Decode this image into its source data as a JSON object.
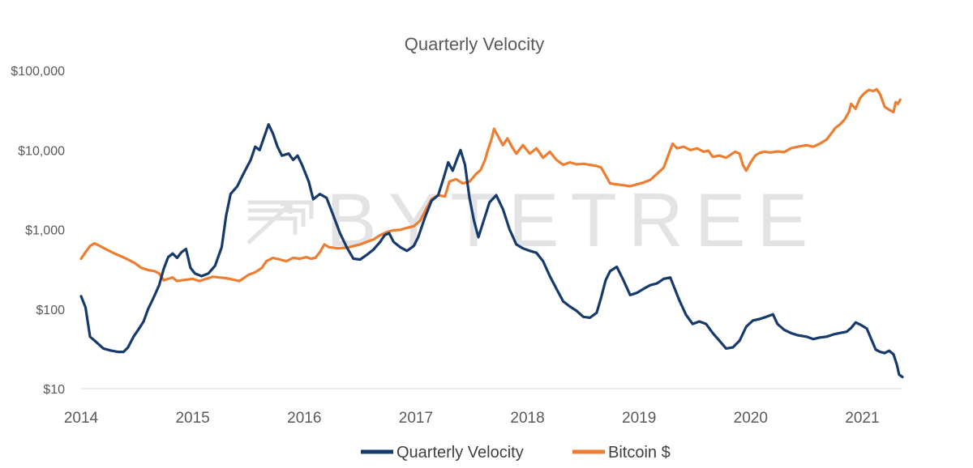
{
  "chart_data": {
    "type": "line",
    "title": "Quarterly Velocity",
    "xlabel": "",
    "ylabel": "",
    "y_scale": "log",
    "ylim": [
      10,
      100000
    ],
    "xlim": [
      2014.0,
      2021.36
    ],
    "y_ticks": [
      {
        "value": 100000,
        "label": "$100,000"
      },
      {
        "value": 10000,
        "label": "$10,000"
      },
      {
        "value": 1000,
        "label": "$1,000"
      },
      {
        "value": 100,
        "label": "$100"
      },
      {
        "value": 10,
        "label": "$10"
      }
    ],
    "x_ticks": [
      {
        "value": 2014,
        "label": "2014"
      },
      {
        "value": 2015,
        "label": "2015"
      },
      {
        "value": 2016,
        "label": "2016"
      },
      {
        "value": 2017,
        "label": "2017"
      },
      {
        "value": 2018,
        "label": "2018"
      },
      {
        "value": 2019,
        "label": "2019"
      },
      {
        "value": 2020,
        "label": "2020"
      },
      {
        "value": 2021,
        "label": "2021"
      }
    ],
    "legend_position": "bottom-center",
    "watermark": "BYTETREE",
    "series": [
      {
        "name": "Quarterly Velocity",
        "color": "#163a6b",
        "points": [
          [
            2014.0,
            145
          ],
          [
            2014.04,
            105
          ],
          [
            2014.08,
            45
          ],
          [
            2014.14,
            38
          ],
          [
            2014.2,
            32
          ],
          [
            2014.27,
            30
          ],
          [
            2014.33,
            29
          ],
          [
            2014.38,
            29
          ],
          [
            2014.42,
            33
          ],
          [
            2014.47,
            45
          ],
          [
            2014.52,
            57
          ],
          [
            2014.56,
            70
          ],
          [
            2014.6,
            100
          ],
          [
            2014.65,
            140
          ],
          [
            2014.7,
            200
          ],
          [
            2014.74,
            320
          ],
          [
            2014.78,
            450
          ],
          [
            2014.82,
            500
          ],
          [
            2014.86,
            440
          ],
          [
            2014.9,
            520
          ],
          [
            2014.94,
            570
          ],
          [
            2014.98,
            330
          ],
          [
            2015.02,
            280
          ],
          [
            2015.08,
            260
          ],
          [
            2015.14,
            280
          ],
          [
            2015.2,
            350
          ],
          [
            2015.26,
            600
          ],
          [
            2015.3,
            1500
          ],
          [
            2015.34,
            2800
          ],
          [
            2015.4,
            3500
          ],
          [
            2015.46,
            5200
          ],
          [
            2015.52,
            7500
          ],
          [
            2015.56,
            11000
          ],
          [
            2015.6,
            10000
          ],
          [
            2015.64,
            14500
          ],
          [
            2015.68,
            21000
          ],
          [
            2015.72,
            16000
          ],
          [
            2015.76,
            11000
          ],
          [
            2015.8,
            8500
          ],
          [
            2015.86,
            9000
          ],
          [
            2015.9,
            7500
          ],
          [
            2015.94,
            8500
          ],
          [
            2015.98,
            6500
          ],
          [
            2016.04,
            4000
          ],
          [
            2016.08,
            2400
          ],
          [
            2016.14,
            2800
          ],
          [
            2016.2,
            2500
          ],
          [
            2016.26,
            1500
          ],
          [
            2016.32,
            900
          ],
          [
            2016.38,
            600
          ],
          [
            2016.44,
            430
          ],
          [
            2016.5,
            420
          ],
          [
            2016.56,
            480
          ],
          [
            2016.62,
            560
          ],
          [
            2016.68,
            700
          ],
          [
            2016.72,
            850
          ],
          [
            2016.76,
            900
          ],
          [
            2016.8,
            700
          ],
          [
            2016.86,
            600
          ],
          [
            2016.92,
            540
          ],
          [
            2016.98,
            620
          ],
          [
            2017.02,
            800
          ],
          [
            2017.08,
            1400
          ],
          [
            2017.14,
            2300
          ],
          [
            2017.2,
            2700
          ],
          [
            2017.25,
            4500
          ],
          [
            2017.29,
            7000
          ],
          [
            2017.33,
            5500
          ],
          [
            2017.37,
            7800
          ],
          [
            2017.4,
            10000
          ],
          [
            2017.44,
            6500
          ],
          [
            2017.48,
            2500
          ],
          [
            2017.52,
            1300
          ],
          [
            2017.56,
            800
          ],
          [
            2017.6,
            1200
          ],
          [
            2017.66,
            2200
          ],
          [
            2017.72,
            2700
          ],
          [
            2017.78,
            1800
          ],
          [
            2017.84,
            1000
          ],
          [
            2017.9,
            650
          ],
          [
            2017.96,
            580
          ],
          [
            2018.02,
            540
          ],
          [
            2018.08,
            510
          ],
          [
            2018.14,
            400
          ],
          [
            2018.2,
            260
          ],
          [
            2018.26,
            180
          ],
          [
            2018.32,
            125
          ],
          [
            2018.38,
            108
          ],
          [
            2018.44,
            95
          ],
          [
            2018.5,
            80
          ],
          [
            2018.56,
            78
          ],
          [
            2018.62,
            90
          ],
          [
            2018.66,
            140
          ],
          [
            2018.7,
            230
          ],
          [
            2018.74,
            300
          ],
          [
            2018.8,
            340
          ],
          [
            2018.86,
            230
          ],
          [
            2018.92,
            150
          ],
          [
            2018.98,
            160
          ],
          [
            2019.04,
            180
          ],
          [
            2019.1,
            200
          ],
          [
            2019.16,
            210
          ],
          [
            2019.22,
            240
          ],
          [
            2019.28,
            250
          ],
          [
            2019.32,
            180
          ],
          [
            2019.36,
            130
          ],
          [
            2019.42,
            85
          ],
          [
            2019.48,
            65
          ],
          [
            2019.54,
            70
          ],
          [
            2019.6,
            65
          ],
          [
            2019.66,
            50
          ],
          [
            2019.72,
            40
          ],
          [
            2019.78,
            32
          ],
          [
            2019.84,
            33
          ],
          [
            2019.9,
            40
          ],
          [
            2019.96,
            60
          ],
          [
            2020.02,
            72
          ],
          [
            2020.08,
            75
          ],
          [
            2020.14,
            80
          ],
          [
            2020.2,
            86
          ],
          [
            2020.24,
            65
          ],
          [
            2020.3,
            55
          ],
          [
            2020.36,
            50
          ],
          [
            2020.42,
            47
          ],
          [
            2020.5,
            45
          ],
          [
            2020.56,
            42
          ],
          [
            2020.62,
            44
          ],
          [
            2020.68,
            45
          ],
          [
            2020.74,
            48
          ],
          [
            2020.8,
            50
          ],
          [
            2020.86,
            52
          ],
          [
            2020.9,
            58
          ],
          [
            2020.94,
            68
          ],
          [
            2020.98,
            64
          ],
          [
            2021.04,
            57
          ],
          [
            2021.08,
            42
          ],
          [
            2021.12,
            31
          ],
          [
            2021.16,
            29
          ],
          [
            2021.2,
            28
          ],
          [
            2021.24,
            30
          ],
          [
            2021.28,
            27
          ],
          [
            2021.31,
            20
          ],
          [
            2021.33,
            15
          ],
          [
            2021.36,
            14
          ]
        ]
      },
      {
        "name": "Bitcoin $",
        "color": "#ed7d31",
        "points": [
          [
            2014.0,
            430
          ],
          [
            2014.04,
            520
          ],
          [
            2014.08,
            620
          ],
          [
            2014.12,
            670
          ],
          [
            2014.18,
            610
          ],
          [
            2014.24,
            550
          ],
          [
            2014.3,
            500
          ],
          [
            2014.36,
            460
          ],
          [
            2014.42,
            420
          ],
          [
            2014.48,
            380
          ],
          [
            2014.54,
            330
          ],
          [
            2014.6,
            310
          ],
          [
            2014.66,
            300
          ],
          [
            2014.7,
            280
          ],
          [
            2014.74,
            230
          ],
          [
            2014.78,
            240
          ],
          [
            2014.82,
            250
          ],
          [
            2014.86,
            225
          ],
          [
            2014.9,
            230
          ],
          [
            2014.95,
            235
          ],
          [
            2015.0,
            240
          ],
          [
            2015.06,
            225
          ],
          [
            2015.12,
            240
          ],
          [
            2015.18,
            255
          ],
          [
            2015.24,
            250
          ],
          [
            2015.3,
            245
          ],
          [
            2015.36,
            235
          ],
          [
            2015.42,
            225
          ],
          [
            2015.5,
            270
          ],
          [
            2015.56,
            290
          ],
          [
            2015.62,
            330
          ],
          [
            2015.66,
            400
          ],
          [
            2015.72,
            440
          ],
          [
            2015.78,
            420
          ],
          [
            2015.84,
            400
          ],
          [
            2015.9,
            440
          ],
          [
            2015.96,
            430
          ],
          [
            2016.02,
            450
          ],
          [
            2016.06,
            430
          ],
          [
            2016.1,
            440
          ],
          [
            2016.14,
            520
          ],
          [
            2016.18,
            650
          ],
          [
            2016.22,
            600
          ],
          [
            2016.3,
            580
          ],
          [
            2016.38,
            590
          ],
          [
            2016.44,
            620
          ],
          [
            2016.5,
            650
          ],
          [
            2016.56,
            700
          ],
          [
            2016.62,
            750
          ],
          [
            2016.68,
            850
          ],
          [
            2016.74,
            930
          ],
          [
            2016.8,
            980
          ],
          [
            2016.86,
            990
          ],
          [
            2016.92,
            1050
          ],
          [
            2016.98,
            1100
          ],
          [
            2017.04,
            1300
          ],
          [
            2017.1,
            1900
          ],
          [
            2017.14,
            2400
          ],
          [
            2017.2,
            2700
          ],
          [
            2017.26,
            2600
          ],
          [
            2017.3,
            4000
          ],
          [
            2017.36,
            4300
          ],
          [
            2017.42,
            3800
          ],
          [
            2017.48,
            4000
          ],
          [
            2017.54,
            5000
          ],
          [
            2017.58,
            5600
          ],
          [
            2017.62,
            7500
          ],
          [
            2017.64,
            9500
          ],
          [
            2017.68,
            14000
          ],
          [
            2017.7,
            18500
          ],
          [
            2017.74,
            14500
          ],
          [
            2017.78,
            11500
          ],
          [
            2017.82,
            14000
          ],
          [
            2017.86,
            11000
          ],
          [
            2017.9,
            9000
          ],
          [
            2017.96,
            11500
          ],
          [
            2018.02,
            9000
          ],
          [
            2018.08,
            10500
          ],
          [
            2018.14,
            8000
          ],
          [
            2018.2,
            9500
          ],
          [
            2018.26,
            7500
          ],
          [
            2018.32,
            6500
          ],
          [
            2018.38,
            7000
          ],
          [
            2018.44,
            6600
          ],
          [
            2018.5,
            6700
          ],
          [
            2018.56,
            6500
          ],
          [
            2018.62,
            6300
          ],
          [
            2018.66,
            6000
          ],
          [
            2018.7,
            4800
          ],
          [
            2018.74,
            3800
          ],
          [
            2018.8,
            3700
          ],
          [
            2018.86,
            3600
          ],
          [
            2018.92,
            3500
          ],
          [
            2018.98,
            3700
          ],
          [
            2019.04,
            3900
          ],
          [
            2019.1,
            4200
          ],
          [
            2019.16,
            5000
          ],
          [
            2019.22,
            6000
          ],
          [
            2019.26,
            8500
          ],
          [
            2019.3,
            12000
          ],
          [
            2019.34,
            10500
          ],
          [
            2019.4,
            11000
          ],
          [
            2019.46,
            10000
          ],
          [
            2019.52,
            10500
          ],
          [
            2019.58,
            9500
          ],
          [
            2019.62,
            9800
          ],
          [
            2019.66,
            8200
          ],
          [
            2019.72,
            8500
          ],
          [
            2019.78,
            8000
          ],
          [
            2019.82,
            8700
          ],
          [
            2019.86,
            9500
          ],
          [
            2019.9,
            9000
          ],
          [
            2019.93,
            6500
          ],
          [
            2019.96,
            5500
          ],
          [
            2020.0,
            7000
          ],
          [
            2020.04,
            8500
          ],
          [
            2020.08,
            9200
          ],
          [
            2020.12,
            9500
          ],
          [
            2020.18,
            9300
          ],
          [
            2020.24,
            9600
          ],
          [
            2020.3,
            9400
          ],
          [
            2020.36,
            10500
          ],
          [
            2020.42,
            11000
          ],
          [
            2020.5,
            11500
          ],
          [
            2020.56,
            11000
          ],
          [
            2020.62,
            12000
          ],
          [
            2020.68,
            13500
          ],
          [
            2020.72,
            16000
          ],
          [
            2020.76,
            19000
          ],
          [
            2020.8,
            21000
          ],
          [
            2020.84,
            24000
          ],
          [
            2020.88,
            30000
          ],
          [
            2020.9,
            38000
          ],
          [
            2020.94,
            33000
          ],
          [
            2020.98,
            45000
          ],
          [
            2021.02,
            52000
          ],
          [
            2021.06,
            57000
          ],
          [
            2021.1,
            55000
          ],
          [
            2021.13,
            58000
          ],
          [
            2021.16,
            50000
          ],
          [
            2021.2,
            35000
          ],
          [
            2021.24,
            32000
          ],
          [
            2021.28,
            30000
          ],
          [
            2021.3,
            40000
          ],
          [
            2021.32,
            38000
          ],
          [
            2021.34,
            43000
          ]
        ]
      }
    ]
  }
}
